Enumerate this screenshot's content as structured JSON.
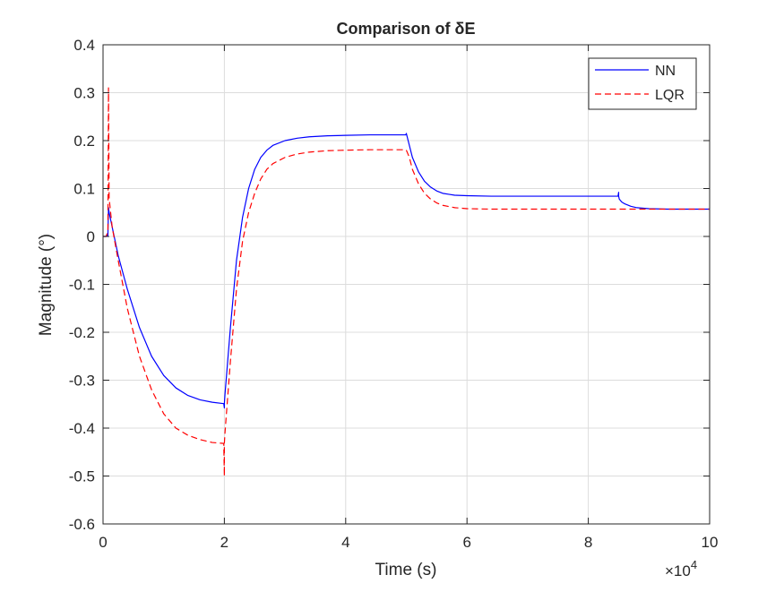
{
  "chart_data": {
    "type": "line",
    "title": "Comparison of δE",
    "xlabel": "Time (s)",
    "ylabel": "Magnitude (°)",
    "x_exponent_label": "×10",
    "x_exponent_power": "4",
    "xlim": [
      0,
      100000
    ],
    "ylim": [
      -0.6,
      0.4
    ],
    "xticks": [
      0,
      20000,
      40000,
      60000,
      80000,
      100000
    ],
    "xtick_labels": [
      "0",
      "2",
      "4",
      "6",
      "8",
      "10"
    ],
    "yticks": [
      -0.6,
      -0.5,
      -0.4,
      -0.3,
      -0.2,
      -0.1,
      0,
      0.1,
      0.2,
      0.3,
      0.4
    ],
    "ytick_labels": [
      "-0.6",
      "-0.5",
      "-0.4",
      "-0.3",
      "-0.2",
      "-0.1",
      "0",
      "0.1",
      "0.2",
      "0.3",
      "0.4"
    ],
    "grid": true,
    "legend_position": "top-right",
    "series": [
      {
        "name": "NN",
        "color": "#0000ff",
        "style": "solid",
        "x": [
          0,
          500,
          800,
          900,
          1000,
          1500,
          2500,
          4000,
          6000,
          8000,
          10000,
          12000,
          14000,
          16000,
          18000,
          19900,
          20000,
          20000,
          20100,
          21000,
          22000,
          23000,
          24000,
          25000,
          26000,
          27000,
          28000,
          30000,
          32000,
          34000,
          37000,
          40000,
          44000,
          49900,
          50000,
          50500,
          51000,
          52000,
          53000,
          54000,
          55000,
          56000,
          57000,
          58000,
          60000,
          64000,
          70000,
          76000,
          80000,
          84900,
          85000,
          85000,
          85100,
          85500,
          86000,
          87000,
          88000,
          90000,
          93000,
          96000,
          100000
        ],
        "y": [
          0,
          0,
          0.002,
          0.06,
          0.05,
          0.02,
          -0.04,
          -0.11,
          -0.19,
          -0.25,
          -0.29,
          -0.316,
          -0.332,
          -0.341,
          -0.346,
          -0.349,
          -0.358,
          -0.349,
          -0.33,
          -0.19,
          -0.05,
          0.04,
          0.1,
          0.14,
          0.165,
          0.18,
          0.19,
          0.2,
          0.205,
          0.208,
          0.21,
          0.211,
          0.212,
          0.212,
          0.215,
          0.19,
          0.165,
          0.135,
          0.115,
          0.103,
          0.095,
          0.09,
          0.088,
          0.086,
          0.085,
          0.084,
          0.084,
          0.084,
          0.084,
          0.084,
          0.092,
          0.084,
          0.078,
          0.072,
          0.068,
          0.063,
          0.06,
          0.058,
          0.057,
          0.057,
          0.057
        ]
      },
      {
        "name": "LQR",
        "color": "#ff0000",
        "style": "dashed",
        "x": [
          0,
          500,
          800,
          900,
          950,
          1000,
          1500,
          2500,
          4000,
          6000,
          8000,
          10000,
          12000,
          14000,
          16000,
          18000,
          19900,
          20000,
          20000,
          20100,
          21000,
          22000,
          23000,
          24000,
          25000,
          26000,
          27000,
          28000,
          30000,
          32000,
          34000,
          37000,
          40000,
          44000,
          49900,
          50000,
          50500,
          51000,
          52000,
          53000,
          54000,
          55000,
          56000,
          58000,
          60000,
          64000,
          70000,
          76000,
          80000,
          85000,
          88000,
          92000,
          96000,
          100000
        ],
        "y": [
          0,
          0,
          0.01,
          0.31,
          0.2,
          0.08,
          0.02,
          -0.05,
          -0.15,
          -0.25,
          -0.32,
          -0.37,
          -0.4,
          -0.415,
          -0.424,
          -0.43,
          -0.432,
          -0.5,
          -0.432,
          -0.41,
          -0.26,
          -0.11,
          -0.01,
          0.05,
          0.09,
          0.12,
          0.14,
          0.152,
          0.165,
          0.172,
          0.176,
          0.179,
          0.18,
          0.181,
          0.181,
          0.18,
          0.165,
          0.14,
          0.11,
          0.09,
          0.078,
          0.07,
          0.065,
          0.06,
          0.058,
          0.057,
          0.057,
          0.057,
          0.057,
          0.057,
          0.057,
          0.057,
          0.057,
          0.057
        ]
      }
    ]
  }
}
